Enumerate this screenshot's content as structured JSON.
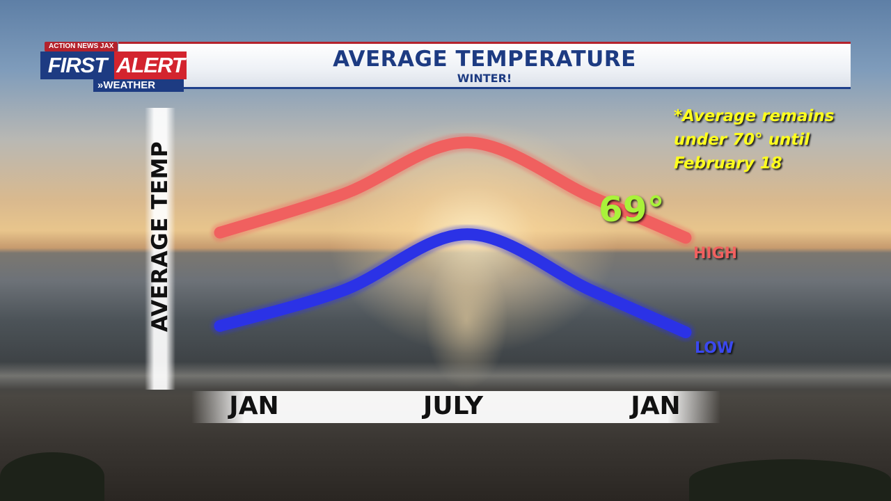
{
  "header": {
    "title": "AVERAGE TEMPERATURE",
    "subtitle": "WINTER!"
  },
  "logo": {
    "station": "ACTION NEWS JAX",
    "first": "FIRST",
    "alert": "ALERT",
    "weather": "»WEATHER"
  },
  "note": "*Average remains under 70° until February 18",
  "annotation": "69°",
  "colors": {
    "high": "#f0605f",
    "low": "#2b32e6",
    "annotation": "#a9f23a",
    "note": "#ffff1e",
    "header_text": "#1d3b82",
    "header_red": "#b4222c"
  },
  "chart_data": {
    "type": "line",
    "title": "AVERAGE TEMPERATURE",
    "subtitle": "WINTER!",
    "xlabel": "",
    "ylabel": "AVERAGE TEMP",
    "x_ticks": [
      "JAN",
      "JULY",
      "JAN"
    ],
    "grid": false,
    "legend": "none",
    "series": [
      {
        "name": "HIGH",
        "color": "#f0605f",
        "x": [
          1,
          4,
          7,
          10,
          12.3
        ],
        "values": [
          0.22,
          0.52,
          0.92,
          0.5,
          0.18
        ]
      },
      {
        "name": "LOW",
        "color": "#2b32e6",
        "x": [
          1,
          4,
          7,
          10,
          12.3
        ],
        "values": [
          0.2,
          0.48,
          0.92,
          0.48,
          0.15
        ]
      }
    ],
    "annotations": [
      {
        "text": "69°",
        "series": "HIGH",
        "x": 10.8
      }
    ]
  }
}
